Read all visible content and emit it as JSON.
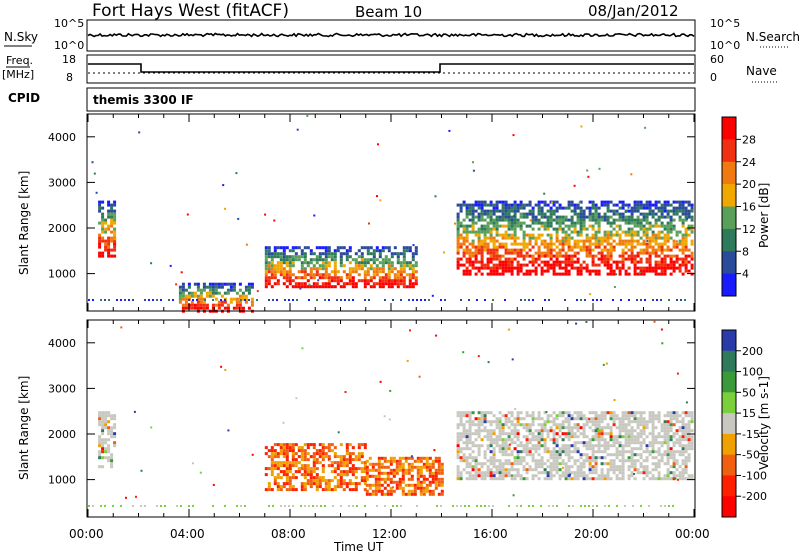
{
  "header": {
    "station": "Fort Hays West (fitACF)",
    "beam": "Beam 10",
    "date": "08/Jan/2012"
  },
  "panels": {
    "nsky_label": "N.Sky",
    "nsearch_label": "N.Search",
    "freq_label_1": "Freq.",
    "freq_label_2": "[MHz]",
    "nave_label": "Nave",
    "cpid_label": "CPID",
    "cpid_value": "themis 3300 IF",
    "noise_ticks": [
      "10^5",
      "10^0"
    ],
    "freq_ticks": [
      "18",
      "8"
    ],
    "nave_ticks": [
      "60",
      "0"
    ]
  },
  "chart_data": [
    {
      "type": "heatmap",
      "quantity": "Power",
      "ylabel": "Slant Range [km]",
      "xlabel": "Time UT",
      "xlim": [
        0,
        24
      ],
      "ylim": [
        180,
        4500
      ],
      "x_ticks": [
        "00:00",
        "04:00",
        "08:00",
        "12:00",
        "16:00",
        "20:00",
        "00:00"
      ],
      "y_ticks": [
        1000,
        2000,
        3000,
        4000
      ],
      "colorbar": {
        "label": "Power [dB]",
        "ticks": [
          "4",
          "8",
          "12",
          "16",
          "20",
          "24",
          "28"
        ],
        "colors": [
          "#1a1aff",
          "#2a4a9a",
          "#2e7a5a",
          "#5aa05a",
          "#f0a800",
          "#f07a10",
          "#f03010",
          "#ff0000"
        ]
      },
      "echo_regions": [
        {
          "t0": 0.4,
          "t1": 1.1,
          "r0": 1400,
          "r1": 2600
        },
        {
          "t0": 3.6,
          "t1": 6.5,
          "r0": 200,
          "r1": 800
        },
        {
          "t0": 7.0,
          "t1": 13.0,
          "r0": 700,
          "r1": 1600
        },
        {
          "t0": 14.6,
          "t1": 23.9,
          "r0": 1000,
          "r1": 2600
        }
      ]
    },
    {
      "type": "heatmap",
      "quantity": "Velocity",
      "ylabel": "Slant Range [km]",
      "xlabel": "Time UT",
      "xlim": [
        0,
        24
      ],
      "ylim": [
        180,
        4500
      ],
      "x_ticks": [
        "00:00",
        "04:00",
        "08:00",
        "12:00",
        "16:00",
        "20:00",
        "00:00"
      ],
      "y_ticks": [
        1000,
        2000,
        3000,
        4000
      ],
      "colorbar": {
        "label": "Velocity [m s-1]",
        "ticks": [
          "200",
          "100",
          "50",
          "15",
          "-15",
          "-50",
          "-100",
          "-200"
        ],
        "colors": [
          "#2a3aa8",
          "#2e7a5a",
          "#3a9a3a",
          "#7ad03a",
          "#c8c8c0",
          "#f0a000",
          "#f06010",
          "#ff2000",
          "#ff0000"
        ]
      },
      "echo_regions": [
        {
          "t0": 0.4,
          "t1": 1.1,
          "r0": 1300,
          "r1": 2500
        },
        {
          "t0": 7.0,
          "t1": 11.0,
          "r0": 800,
          "r1": 1800
        },
        {
          "t0": 11.0,
          "t1": 14.0,
          "r0": 700,
          "r1": 1500
        },
        {
          "t0": 14.6,
          "t1": 23.9,
          "r0": 1000,
          "r1": 2500
        }
      ]
    }
  ]
}
